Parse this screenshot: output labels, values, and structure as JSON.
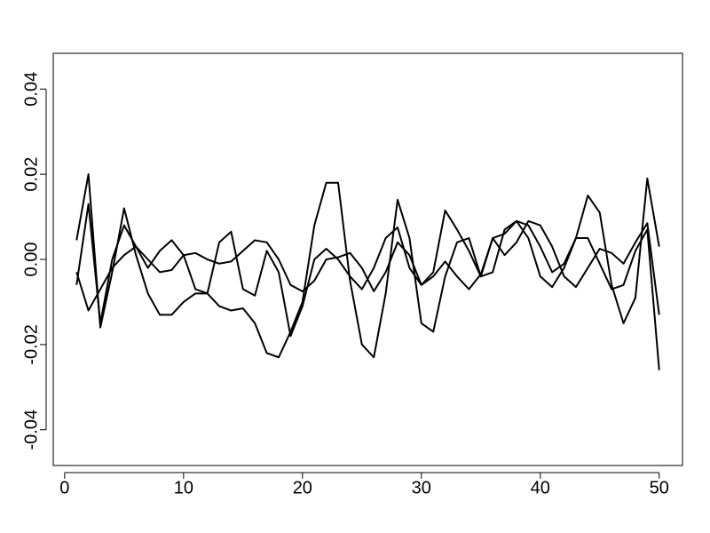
{
  "chart_data": {
    "type": "line",
    "x": [
      1,
      2,
      3,
      4,
      5,
      6,
      7,
      8,
      9,
      10,
      11,
      12,
      13,
      14,
      15,
      16,
      17,
      18,
      19,
      20,
      21,
      22,
      23,
      24,
      25,
      26,
      27,
      28,
      29,
      30,
      31,
      32,
      33,
      34,
      35,
      36,
      37,
      38,
      39,
      40,
      41,
      42,
      43,
      44,
      45,
      46,
      47,
      48,
      49,
      50
    ],
    "series": [
      {
        "color": "#000000",
        "values": [
          0.0045,
          0.02,
          -0.016,
          -0.003,
          0.012,
          0.001,
          -0.008,
          -0.013,
          -0.013,
          -0.01,
          -0.008,
          -0.008,
          -0.011,
          -0.012,
          -0.0115,
          -0.015,
          -0.022,
          -0.023,
          -0.017,
          -0.01,
          0.008,
          0.018,
          0.018,
          -0.005,
          -0.02,
          -0.023,
          -0.008,
          0.014,
          0.005,
          -0.015,
          -0.017,
          -0.004,
          0.004,
          0.005,
          -0.004,
          -0.003,
          0.007,
          0.009,
          0.008,
          0.003,
          -0.003,
          -0.001,
          0.005,
          0.015,
          0.011,
          -0.006,
          -0.015,
          -0.009,
          0.019,
          0.003
        ]
      },
      {
        "color": "#000000",
        "values": [
          -0.006,
          0.013,
          -0.015,
          0.0,
          0.008,
          0.003,
          -0.002,
          0.002,
          0.0045,
          0.001,
          -0.007,
          -0.008,
          0.004,
          0.0065,
          -0.007,
          -0.0085,
          0.002,
          -0.003,
          -0.018,
          -0.011,
          0.0,
          0.0025,
          0.0,
          -0.004,
          -0.007,
          -0.002,
          0.005,
          0.0075,
          -0.002,
          -0.006,
          -0.003,
          0.0115,
          0.007,
          0.002,
          -0.004,
          0.005,
          0.006,
          0.009,
          0.005,
          -0.004,
          -0.0065,
          -0.002,
          0.005,
          0.005,
          -0.001,
          -0.007,
          -0.006,
          0.002,
          0.007,
          -0.026
        ]
      },
      {
        "color": "#000000",
        "values": [
          -0.003,
          -0.012,
          -0.007,
          -0.002,
          0.001,
          0.003,
          0.0,
          -0.003,
          -0.0025,
          0.001,
          0.0015,
          0.0,
          -0.001,
          -0.0005,
          0.002,
          0.0045,
          0.004,
          0.0,
          -0.006,
          -0.0075,
          -0.005,
          0.0,
          0.0005,
          0.0015,
          -0.002,
          -0.0075,
          -0.003,
          0.004,
          0.001,
          -0.006,
          -0.004,
          -0.0005,
          -0.004,
          -0.007,
          -0.0035,
          0.005,
          0.001,
          0.004,
          0.009,
          0.008,
          0.003,
          -0.004,
          -0.0065,
          -0.002,
          0.0025,
          0.0015,
          -0.001,
          0.004,
          0.0085,
          -0.013
        ]
      }
    ],
    "xlim": [
      -0.96,
      51.96
    ],
    "xticks": [
      0,
      10,
      20,
      30,
      40,
      50
    ],
    "ylim": [
      -0.0484,
      0.0484
    ],
    "yticks": [
      -0.04,
      -0.02,
      {
        "value": 0,
        "label": "0.00"
      },
      0.02,
      0.04
    ]
  }
}
